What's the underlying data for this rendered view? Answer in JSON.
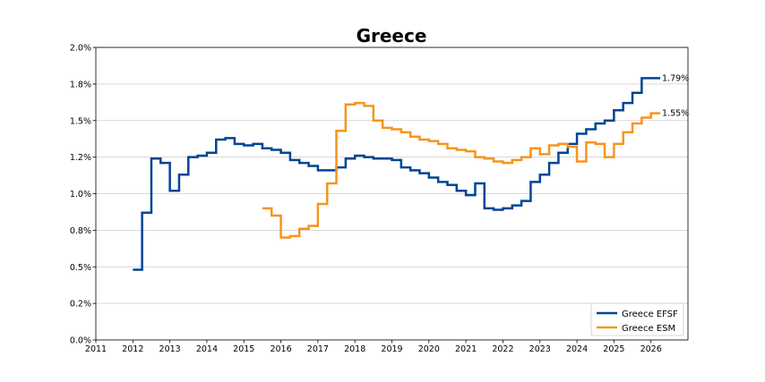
{
  "chart_data": {
    "type": "line",
    "title": "Greece",
    "xlabel": "",
    "ylabel": "",
    "xlim": [
      2011,
      2027
    ],
    "ylim": [
      0,
      2.0
    ],
    "x_ticks": [
      "2011",
      "2012",
      "2013",
      "2014",
      "2015",
      "2016",
      "2017",
      "2018",
      "2019",
      "2020",
      "2021",
      "2022",
      "2023",
      "2024",
      "2025",
      "2026"
    ],
    "y_ticks": [
      "0.0%",
      "0.2%",
      "0.5%",
      "0.8%",
      "1.0%",
      "1.2%",
      "1.5%",
      "1.8%",
      "2.0%"
    ],
    "grid": "horizontal",
    "legend_position": "bottom-right",
    "line_shape": "step",
    "series": [
      {
        "name": "Greece EFSF",
        "color": "#004494",
        "end_label": "1.79%",
        "x": [
          2012.0,
          2012.25,
          2012.5,
          2012.75,
          2013.0,
          2013.25,
          2013.5,
          2013.75,
          2014.0,
          2014.25,
          2014.5,
          2014.75,
          2015.0,
          2015.25,
          2015.5,
          2015.75,
          2016.0,
          2016.25,
          2016.5,
          2016.75,
          2017.0,
          2017.25,
          2017.5,
          2017.75,
          2018.0,
          2018.25,
          2018.5,
          2018.75,
          2019.0,
          2019.25,
          2019.5,
          2019.75,
          2020.0,
          2020.25,
          2020.5,
          2020.75,
          2021.0,
          2021.25,
          2021.5,
          2021.75,
          2022.0,
          2022.25,
          2022.5,
          2022.75,
          2023.0,
          2023.25,
          2023.5,
          2023.75,
          2024.0,
          2024.25,
          2024.5,
          2024.75,
          2025.0,
          2025.25,
          2025.5,
          2025.75,
          2026.0,
          2026.25
        ],
        "y": [
          0.48,
          0.87,
          1.24,
          1.21,
          1.02,
          1.13,
          1.25,
          1.26,
          1.28,
          1.37,
          1.38,
          1.34,
          1.33,
          1.34,
          1.31,
          1.3,
          1.28,
          1.23,
          1.21,
          1.19,
          1.16,
          1.16,
          1.18,
          1.24,
          1.26,
          1.25,
          1.24,
          1.24,
          1.23,
          1.18,
          1.16,
          1.14,
          1.11,
          1.08,
          1.06,
          1.02,
          0.99,
          1.07,
          0.9,
          0.89,
          0.9,
          0.92,
          0.95,
          1.08,
          1.13,
          1.21,
          1.28,
          1.34,
          1.41,
          1.44,
          1.48,
          1.5,
          1.57,
          1.62,
          1.69,
          1.79,
          1.79,
          1.79
        ]
      },
      {
        "name": "Greece ESM",
        "color": "#F7941D",
        "end_label": "1.55%",
        "x": [
          2015.5,
          2015.75,
          2016.0,
          2016.25,
          2016.5,
          2016.75,
          2017.0,
          2017.25,
          2017.5,
          2017.75,
          2018.0,
          2018.25,
          2018.5,
          2018.75,
          2019.0,
          2019.25,
          2019.5,
          2019.75,
          2020.0,
          2020.25,
          2020.5,
          2020.75,
          2021.0,
          2021.25,
          2021.5,
          2021.75,
          2022.0,
          2022.25,
          2022.5,
          2022.75,
          2023.0,
          2023.25,
          2023.5,
          2023.75,
          2024.0,
          2024.25,
          2024.5,
          2024.75,
          2025.0,
          2025.25,
          2025.5,
          2025.75,
          2026.0,
          2026.25
        ],
        "y": [
          0.9,
          0.85,
          0.7,
          0.71,
          0.76,
          0.78,
          0.93,
          1.07,
          1.43,
          1.61,
          1.62,
          1.6,
          1.5,
          1.45,
          1.44,
          1.42,
          1.39,
          1.37,
          1.36,
          1.34,
          1.31,
          1.3,
          1.29,
          1.25,
          1.24,
          1.22,
          1.21,
          1.23,
          1.25,
          1.31,
          1.27,
          1.33,
          1.34,
          1.32,
          1.22,
          1.35,
          1.34,
          1.25,
          1.34,
          1.42,
          1.48,
          1.52,
          1.55,
          1.55
        ]
      }
    ]
  }
}
